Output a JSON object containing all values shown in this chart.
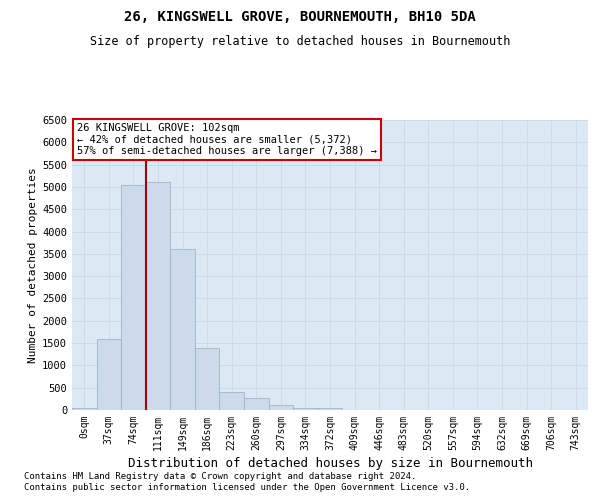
{
  "title": "26, KINGSWELL GROVE, BOURNEMOUTH, BH10 5DA",
  "subtitle": "Size of property relative to detached houses in Bournemouth",
  "xlabel": "Distribution of detached houses by size in Bournemouth",
  "ylabel": "Number of detached properties",
  "bar_labels": [
    "0sqm",
    "37sqm",
    "74sqm",
    "111sqm",
    "149sqm",
    "186sqm",
    "223sqm",
    "260sqm",
    "297sqm",
    "334sqm",
    "372sqm",
    "409sqm",
    "446sqm",
    "483sqm",
    "520sqm",
    "557sqm",
    "594sqm",
    "632sqm",
    "669sqm",
    "706sqm",
    "743sqm"
  ],
  "bar_values": [
    50,
    1600,
    5050,
    5100,
    3600,
    1400,
    400,
    270,
    120,
    55,
    50,
    0,
    0,
    0,
    0,
    0,
    0,
    0,
    0,
    0,
    0
  ],
  "bar_color": "#ccdaea",
  "bar_edge_color": "#90afc8",
  "vline_x": 2.5,
  "vline_color": "#aa0000",
  "ylim": [
    0,
    6500
  ],
  "yticks": [
    0,
    500,
    1000,
    1500,
    2000,
    2500,
    3000,
    3500,
    4000,
    4500,
    5000,
    5500,
    6000,
    6500
  ],
  "annotation_text": "26 KINGSWELL GROVE: 102sqm\n← 42% of detached houses are smaller (5,372)\n57% of semi-detached houses are larger (7,388) →",
  "annotation_box_color": "#ffffff",
  "annotation_box_edge": "#cc0000",
  "footer1": "Contains HM Land Registry data © Crown copyright and database right 2024.",
  "footer2": "Contains public sector information licensed under the Open Government Licence v3.0.",
  "grid_color": "#c8d4e4",
  "bg_color": "#dce8f4"
}
